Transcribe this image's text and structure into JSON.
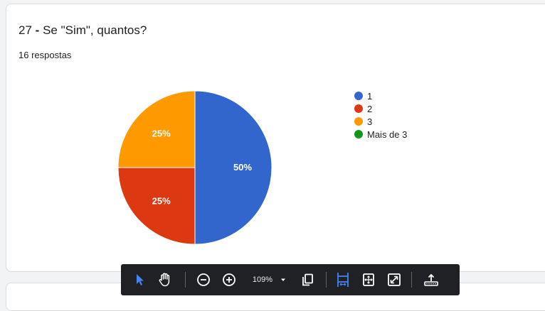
{
  "question": {
    "number": "27",
    "dash": "-",
    "text": "Se \"Sim\", quantos?",
    "responses": "16 respostas"
  },
  "chart_data": {
    "type": "pie",
    "categories": [
      "1",
      "2",
      "3",
      "Mais de 3"
    ],
    "values": [
      50,
      25,
      25,
      0
    ],
    "labels": [
      "50%",
      "25%",
      "25%",
      ""
    ],
    "colors": [
      "#3366cc",
      "#dc3912",
      "#ff9900",
      "#109618"
    ],
    "legend_position": "right"
  },
  "toolbar": {
    "zoom": "109%",
    "colors": {
      "background": "#202124",
      "active": "#4285f4"
    }
  }
}
